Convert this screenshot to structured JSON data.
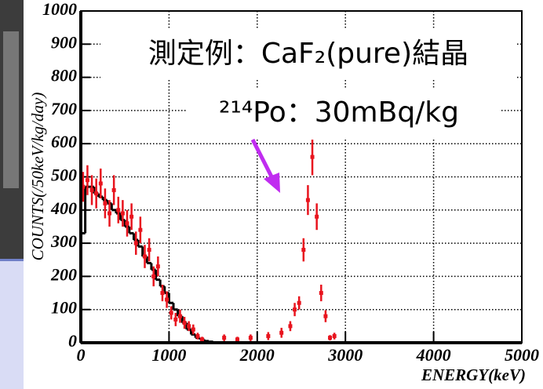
{
  "chart_data": {
    "type": "histogram",
    "title": "測定例：CaF₂(pure)結晶",
    "annotation": "²¹⁴Po：30mBq/kg",
    "x_label": "ENERGY(keV)",
    "y_label": "COUNTS(/50keV/kg/day)",
    "xlim": [
      0,
      5000
    ],
    "xticks": [
      0,
      1000,
      2000,
      3000,
      4000,
      5000
    ],
    "ylim": [
      0,
      1000
    ],
    "yticks": [
      0,
      100,
      200,
      300,
      400,
      500,
      600,
      700,
      800,
      900,
      1000
    ],
    "grid": true,
    "color": "#000000",
    "bins": [
      0,
      50,
      100,
      150,
      200,
      250,
      300,
      350,
      400,
      450,
      500,
      550,
      600,
      650,
      700,
      750,
      800,
      850,
      900,
      950,
      1000,
      1050,
      1100,
      1150,
      1200,
      1250,
      1300,
      1350,
      1400,
      1450,
      1500
    ],
    "values": [
      330,
      470,
      470,
      450,
      440,
      430,
      420,
      400,
      390,
      370,
      350,
      330,
      310,
      290,
      260,
      240,
      220,
      190,
      170,
      150,
      120,
      100,
      80,
      60,
      40,
      25,
      15,
      10,
      5,
      3
    ],
    "series": [
      {
        "color": "#e8141e",
        "x": [
          25,
          75,
          125,
          175,
          225,
          275,
          325,
          375,
          425,
          475,
          525,
          575,
          625,
          675,
          725,
          775,
          825,
          875,
          925,
          975,
          1025,
          1075,
          1125,
          1175,
          1225,
          1275,
          1325,
          1375,
          1625,
          1775,
          1925,
          2125,
          2275,
          2375,
          2425,
          2475,
          2525,
          2575,
          2625,
          2675,
          2725,
          2775,
          2825,
          2875
        ],
        "values": [
          470,
          490,
          460,
          450,
          480,
          420,
          390,
          460,
          400,
          390,
          360,
          380,
          300,
          340,
          260,
          280,
          200,
          230,
          150,
          130,
          90,
          70,
          80,
          60,
          50,
          40,
          20,
          10,
          15,
          10,
          15,
          20,
          30,
          50,
          100,
          120,
          280,
          430,
          560,
          380,
          150,
          80,
          15,
          20
        ],
        "errors": [
          45,
          45,
          45,
          45,
          45,
          45,
          40,
          45,
          40,
          40,
          40,
          40,
          35,
          40,
          35,
          35,
          30,
          30,
          25,
          25,
          20,
          20,
          20,
          18,
          15,
          15,
          10,
          8,
          10,
          8,
          10,
          12,
          15,
          15,
          20,
          20,
          35,
          45,
          55,
          40,
          25,
          18,
          8,
          10
        ]
      }
    ]
  }
}
